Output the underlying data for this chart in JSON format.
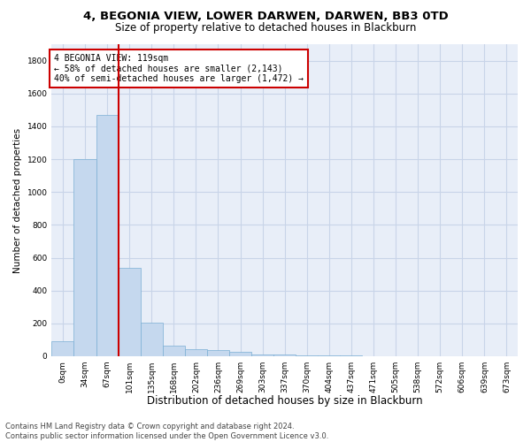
{
  "title_line1": "4, BEGONIA VIEW, LOWER DARWEN, DARWEN, BB3 0TD",
  "title_line2": "Size of property relative to detached houses in Blackburn",
  "xlabel": "Distribution of detached houses by size in Blackburn",
  "ylabel": "Number of detached properties",
  "bar_values": [
    90,
    1200,
    1470,
    540,
    205,
    65,
    45,
    35,
    28,
    12,
    8,
    5,
    4,
    3,
    2,
    2,
    1,
    1,
    1,
    0,
    0
  ],
  "bar_labels": [
    "0sqm",
    "34sqm",
    "67sqm",
    "101sqm",
    "135sqm",
    "168sqm",
    "202sqm",
    "236sqm",
    "269sqm",
    "303sqm",
    "337sqm",
    "370sqm",
    "404sqm",
    "437sqm",
    "471sqm",
    "505sqm",
    "538sqm",
    "572sqm",
    "606sqm",
    "639sqm",
    "673sqm"
  ],
  "bar_color": "#c5d8ee",
  "bar_edge_color": "#7bafd4",
  "grid_color": "#c8d4e8",
  "background_color": "#e8eef8",
  "vline_color": "#cc0000",
  "vline_x": 2.5,
  "annotation_text": "4 BEGONIA VIEW: 119sqm\n← 58% of detached houses are smaller (2,143)\n40% of semi-detached houses are larger (1,472) →",
  "annotation_box_color": "#cc0000",
  "ylim": [
    0,
    1900
  ],
  "yticks": [
    0,
    200,
    400,
    600,
    800,
    1000,
    1200,
    1400,
    1600,
    1800
  ],
  "footnote_line1": "Contains HM Land Registry data © Crown copyright and database right 2024.",
  "footnote_line2": "Contains public sector information licensed under the Open Government Licence v3.0.",
  "title1_fontsize": 9.5,
  "title2_fontsize": 8.5,
  "xlabel_fontsize": 8.5,
  "ylabel_fontsize": 7.5,
  "tick_fontsize": 6.5,
  "annotation_fontsize": 7,
  "footnote_fontsize": 6
}
